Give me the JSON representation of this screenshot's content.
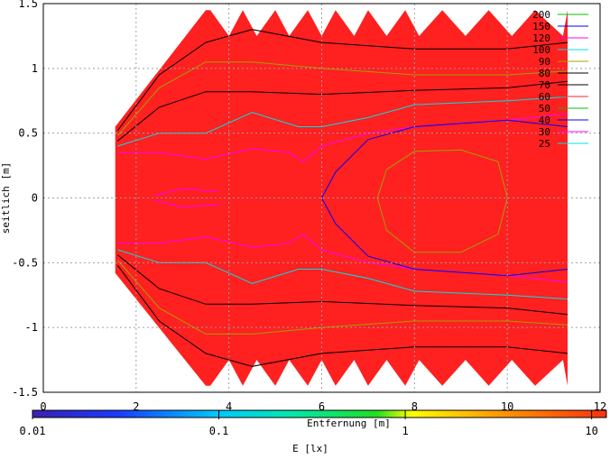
{
  "chart_data": {
    "type": "contour",
    "xlabel": "Entfernung [m]",
    "ylabel": "seitlich [m]",
    "xlim": [
      0,
      12
    ],
    "ylim": [
      -1.5,
      1.5
    ],
    "x_ticks": [
      "0",
      "2",
      "4",
      "6",
      "8",
      "10",
      "12"
    ],
    "y_ticks": [
      "1.5",
      "1",
      "0.5",
      "0",
      "-0.5",
      "-1",
      "-1.5"
    ],
    "grid": true,
    "legend_position": "top-right",
    "fill_color": "#ff2020",
    "contour_levels": [
      {
        "value": "200",
        "color": "#00c000"
      },
      {
        "value": "150",
        "color": "#0000ff"
      },
      {
        "value": "120",
        "color": "#ff00ff"
      },
      {
        "value": "100",
        "color": "#00e0e0"
      },
      {
        "value": "90",
        "color": "#a0a000"
      },
      {
        "value": "80",
        "color": "#000000"
      },
      {
        "value": "70",
        "color": "#000000"
      },
      {
        "value": "60",
        "color": "#ff2020"
      },
      {
        "value": "50",
        "color": "#00c000"
      },
      {
        "value": "40",
        "color": "#0000ff"
      },
      {
        "value": "30",
        "color": "#ff00ff"
      },
      {
        "value": "25",
        "color": "#00e0e0"
      }
    ],
    "colorbar": {
      "label": "E [lx]",
      "scale": "log",
      "range": [
        0.01,
        12
      ],
      "tick_labels": [
        "0.01",
        "0.1",
        "1",
        "10"
      ],
      "tick_values": [
        0.01,
        0.1,
        1,
        10
      ]
    }
  }
}
